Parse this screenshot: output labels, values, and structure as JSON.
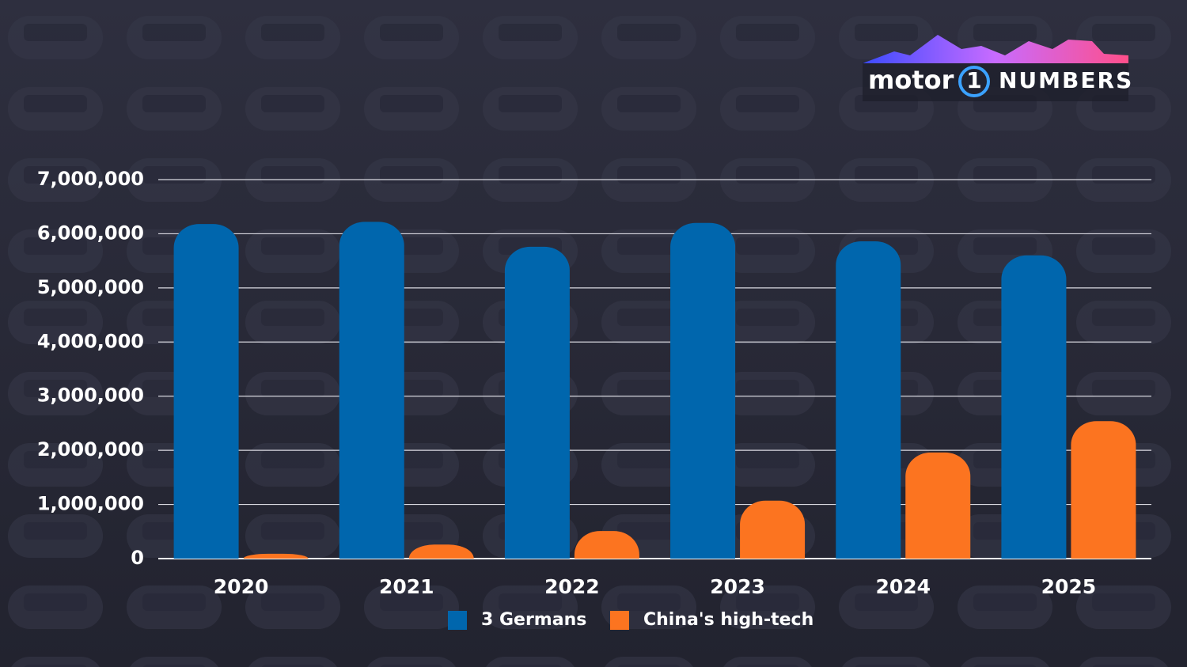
{
  "chart_data": {
    "type": "bar",
    "logo": [
      "motor",
      "1",
      "NUMBERS"
    ],
    "categories": [
      "2020",
      "2021",
      "2022",
      "2023",
      "2024",
      "2025"
    ],
    "series": [
      {
        "name": "3 Germans",
        "color": "#0066ad",
        "values": [
          6180000,
          6220000,
          5760000,
          6200000,
          5860000,
          5600000
        ]
      },
      {
        "name": "China's high-tech",
        "color": "#fc7420",
        "values": [
          90000,
          260000,
          510000,
          1070000,
          1960000,
          2540000
        ]
      }
    ],
    "ylim": [
      0,
      7000000
    ],
    "yticks": [
      0,
      {
        "value": 1000000,
        "label": "1,000,000"
      },
      {
        "value": 2000000,
        "label": "2,000,000"
      },
      {
        "value": 3000000,
        "label": "3,000,000"
      },
      {
        "value": 4000000,
        "label": "4,000,000"
      },
      {
        "value": 5000000,
        "label": "5,000,000"
      },
      {
        "value": 6000000,
        "label": "6,000,000"
      },
      {
        "value": 7000000,
        "label": "7,000,000"
      }
    ],
    "grid": true
  }
}
